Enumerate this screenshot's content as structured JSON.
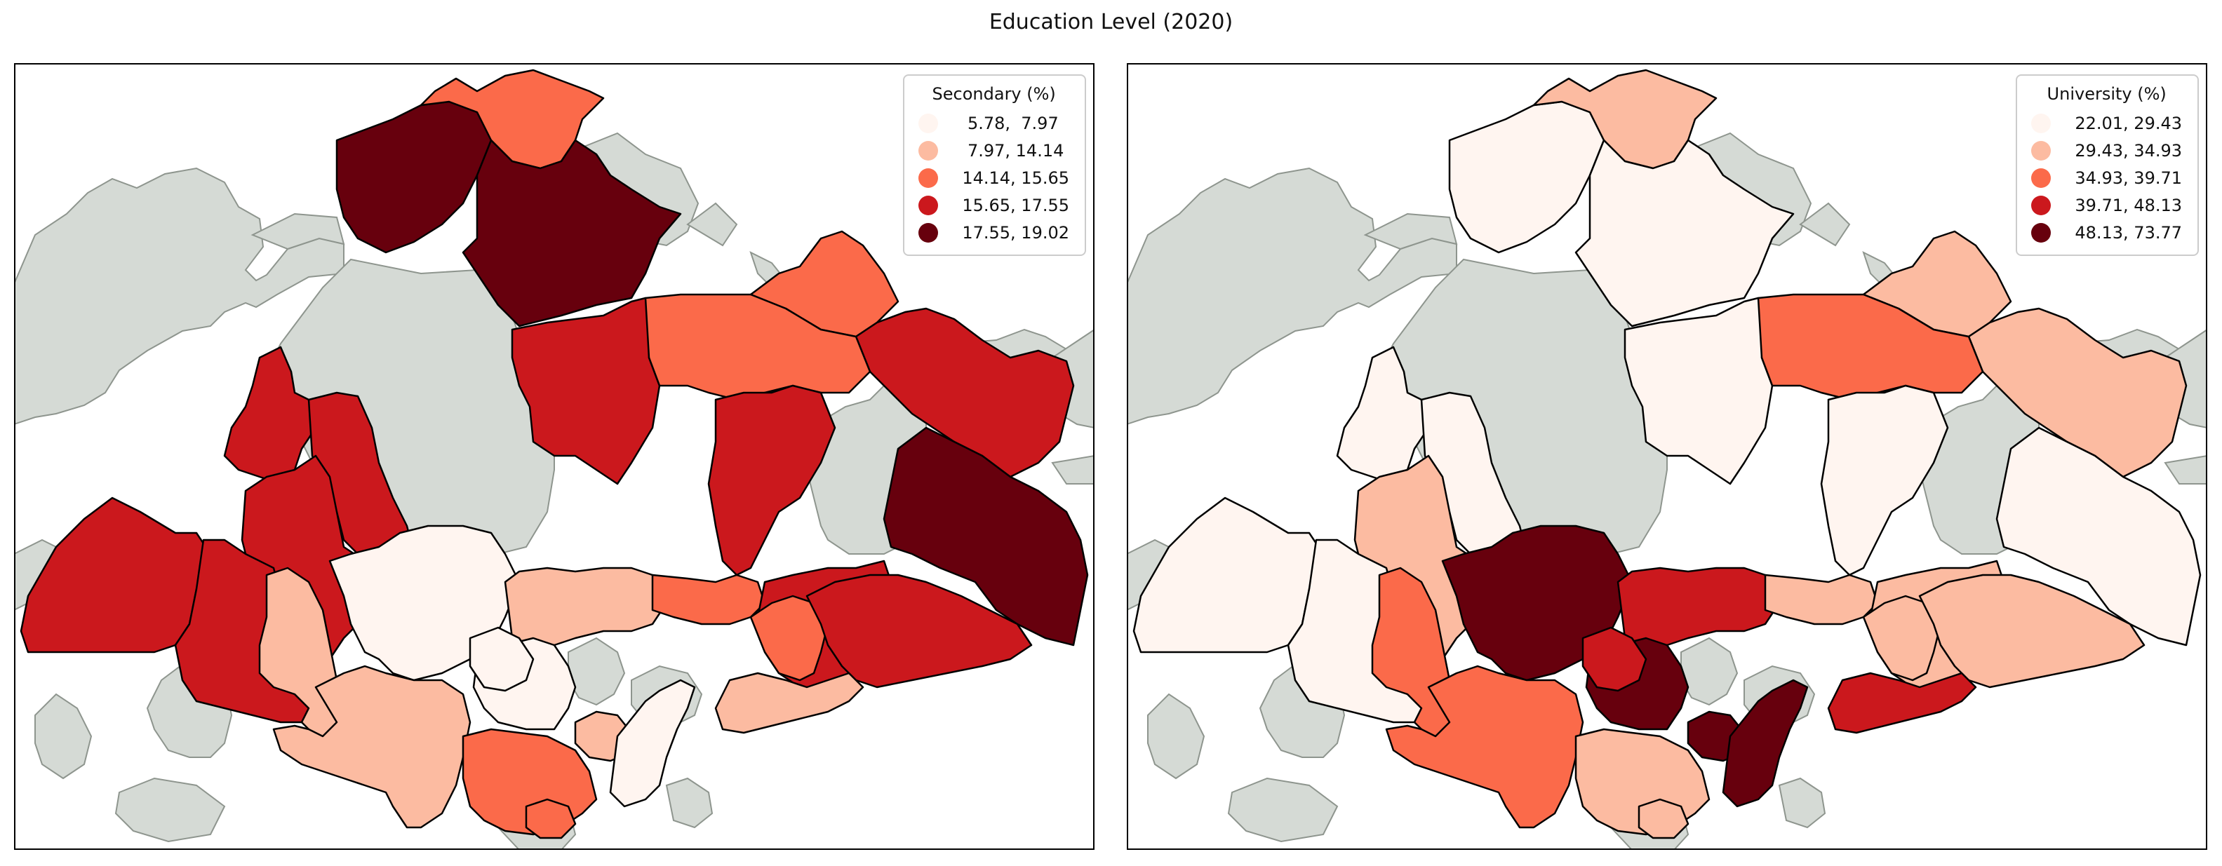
{
  "figure": {
    "title": "Education Level (2020)"
  },
  "colors": {
    "class_1": "#fff5f0",
    "class_2": "#fcbba1",
    "class_3": "#fb6a4a",
    "class_4": "#cb181d",
    "class_5": "#67000d",
    "no_data": "#d5dad5",
    "sea": "#ffffff"
  },
  "maps": [
    {
      "id": "secondary",
      "legend": {
        "title": "Secondary (%)",
        "entries": [
          {
            "label": " 5.78,  7.97",
            "class": 1
          },
          {
            "label": " 7.97, 14.14",
            "class": 2
          },
          {
            "label": "14.14, 15.65",
            "class": 3
          },
          {
            "label": "15.65, 17.55",
            "class": 4
          },
          {
            "label": "17.55, 19.02",
            "class": 5
          }
        ]
      },
      "regions": {
        "north-west-a": 5,
        "north-tip": 3,
        "north-central": 5,
        "north-east-a": 3,
        "east-upper": 4,
        "central-north-a": 4,
        "central-north-b": 3,
        "central-north-c": 4,
        "east-far": 5,
        "west-upper-a": 4,
        "west-upper-b": 4,
        "west-mid": 4,
        "west-far": 4,
        "west-south": 4,
        "central-a": 1,
        "central-b": 2,
        "central-c": 3,
        "central-d": 4,
        "south-west-a": 2,
        "south-mid": 2,
        "south-c": 1,
        "south-d": 3,
        "south-e": 2,
        "south-f": 1,
        "east-mid": 3,
        "east-lower": 4,
        "south-east": 2,
        "south-tip": 3,
        "central-core": 1
      }
    },
    {
      "id": "university",
      "legend": {
        "title": "University (%)",
        "entries": [
          {
            "label": "22.01, 29.43",
            "class": 1
          },
          {
            "label": "29.43, 34.93",
            "class": 2
          },
          {
            "label": "34.93, 39.71",
            "class": 3
          },
          {
            "label": "39.71, 48.13",
            "class": 4
          },
          {
            "label": "48.13, 73.77",
            "class": 5
          }
        ]
      },
      "regions": {
        "north-west-a": 1,
        "north-tip": 2,
        "north-central": 1,
        "north-east-a": 2,
        "east-upper": 2,
        "central-north-a": 1,
        "central-north-b": 3,
        "central-north-c": 1,
        "east-far": 1,
        "west-upper-a": 1,
        "west-upper-b": 1,
        "west-mid": 2,
        "west-far": 1,
        "west-south": 1,
        "central-a": 5,
        "central-b": 4,
        "central-c": 2,
        "central-d": 2,
        "south-west-a": 3,
        "south-mid": 3,
        "south-c": 5,
        "south-d": 2,
        "south-e": 5,
        "south-f": 5,
        "east-mid": 2,
        "east-lower": 2,
        "south-east": 4,
        "south-tip": 2,
        "central-core": 4
      }
    }
  ]
}
